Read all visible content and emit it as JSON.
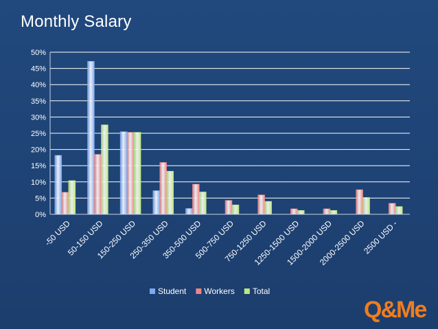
{
  "slide": {
    "logo_text": "Q&Me"
  },
  "chart_data": {
    "type": "bar",
    "title": "Monthly Salary",
    "xlabel": "",
    "ylabel": "",
    "ylim": [
      0,
      50
    ],
    "yticks": [
      0,
      5,
      10,
      15,
      20,
      25,
      30,
      35,
      40,
      45,
      50
    ],
    "ytick_labels": [
      "0%",
      "5%",
      "10%",
      "15%",
      "20%",
      "25%",
      "30%",
      "35%",
      "40%",
      "45%",
      "50%"
    ],
    "grid": true,
    "legend_position": "bottom",
    "categories": [
      "-50 USD",
      "50-150 USD",
      "150-250 USD",
      "250-350 USD",
      "350-500 USD",
      "500-750 USD",
      "750-1250 USD",
      "1250-1500 USD",
      "1500-2000 USD",
      "2000-2500 USD",
      "2500 USD -"
    ],
    "series": [
      {
        "name": "Student",
        "color": "#7eaaf3",
        "values": [
          18.2,
          47.2,
          25.5,
          7.3,
          1.8,
          0,
          0,
          0,
          0,
          0,
          0
        ]
      },
      {
        "name": "Workers",
        "color": "#ef8584",
        "values": [
          6.8,
          18.5,
          25.3,
          16.0,
          9.3,
          4.3,
          6.0,
          1.7,
          1.7,
          7.6,
          3.4
        ]
      },
      {
        "name": "Total",
        "color": "#bde87c",
        "values": [
          10.4,
          27.6,
          25.3,
          13.3,
          6.9,
          2.9,
          4.0,
          1.2,
          1.2,
          5.2,
          2.4
        ]
      }
    ]
  }
}
